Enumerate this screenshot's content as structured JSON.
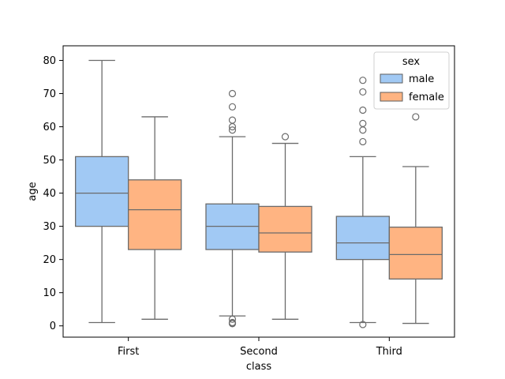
{
  "chart_data": {
    "type": "boxplot",
    "title": "",
    "xlabel": "class",
    "ylabel": "age",
    "categories": [
      "First",
      "Second",
      "Third"
    ],
    "ylim": [
      -3.4,
      84.4
    ],
    "yticks": [
      0,
      10,
      20,
      30,
      40,
      50,
      60,
      70,
      80
    ],
    "grid": false,
    "legend": {
      "title": "sex",
      "position": "top-right"
    },
    "series": [
      {
        "name": "male",
        "color": "#a1c9f4",
        "boxes": [
          {
            "min": 1,
            "q1": 30,
            "median": 40,
            "q3": 51,
            "max": 80,
            "outliers": []
          },
          {
            "min": 3,
            "q1": 23,
            "median": 30,
            "q3": 36.75,
            "max": 57,
            "outliers": [
              0.67,
              0.83,
              1,
              2,
              59,
              60,
              62,
              66,
              70
            ]
          },
          {
            "min": 1,
            "q1": 20,
            "median": 25,
            "q3": 33,
            "max": 51,
            "outliers": [
              0.42,
              55.5,
              59,
              61,
              65,
              70.5,
              74
            ]
          }
        ]
      },
      {
        "name": "female",
        "color": "#ffb482",
        "boxes": [
          {
            "min": 2,
            "q1": 23,
            "median": 35,
            "q3": 44,
            "max": 63,
            "outliers": []
          },
          {
            "min": 2,
            "q1": 22.25,
            "median": 28,
            "q3": 36,
            "max": 55,
            "outliers": [
              57
            ]
          },
          {
            "min": 0.75,
            "q1": 14.12,
            "median": 21.5,
            "q3": 29.75,
            "max": 48,
            "outliers": [
              63
            ]
          }
        ]
      }
    ]
  }
}
